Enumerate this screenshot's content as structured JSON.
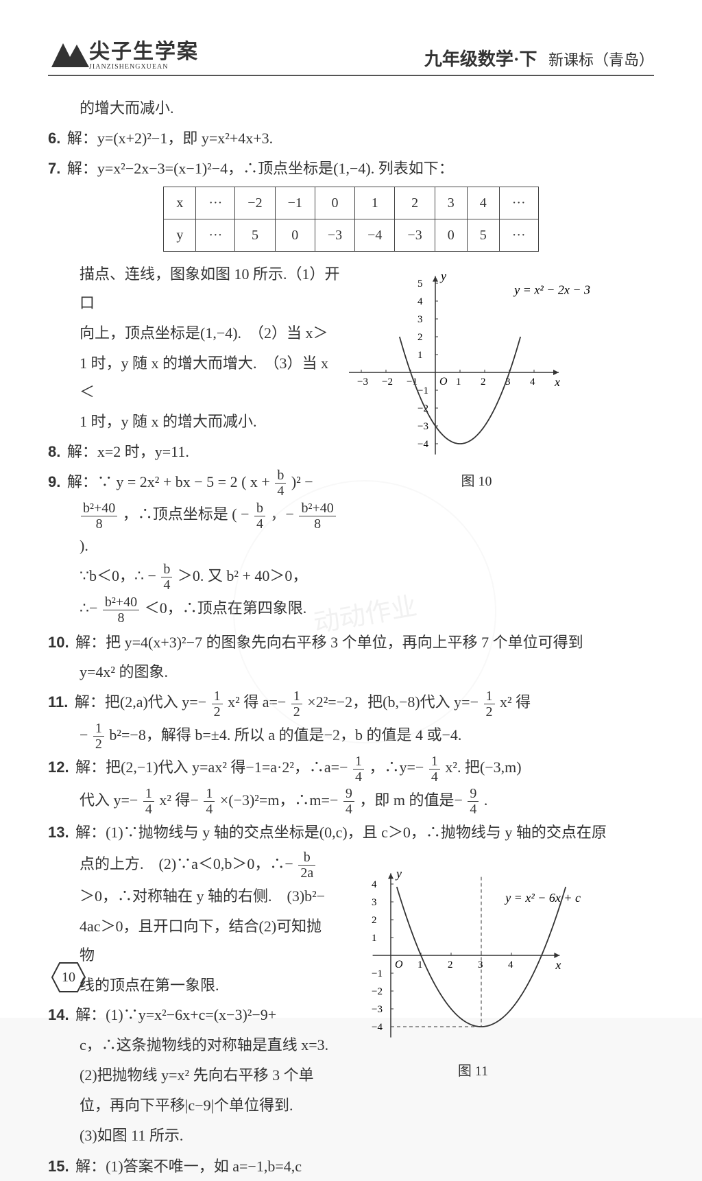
{
  "header": {
    "logo_main": "尖子生学案",
    "logo_sub": "JIANZISHENGXUEAN",
    "title": "九年级数学·下",
    "subtitle": "新课标（青岛）"
  },
  "table7": {
    "row_x": [
      "x",
      "···",
      "−2",
      "−1",
      "0",
      "1",
      "2",
      "3",
      "4",
      "···"
    ],
    "row_y": [
      "y",
      "···",
      "5",
      "0",
      "−3",
      "−4",
      "−3",
      "0",
      "5",
      "···"
    ]
  },
  "lines": {
    "l0": "的增大而减小.",
    "l6": "解：y=(x+2)²−1，即 y=x²+4x+3.",
    "l7": "解：y=x²−2x−3=(x−1)²−4，∴顶点坐标是(1,−4). 列表如下：",
    "l7b1": "描点、连线，图象如图 10 所示.（1）开口",
    "l7b2": "向上，顶点坐标是(1,−4).　（2）当 x＞",
    "l7b3": "1 时，y 随 x 的增大而增大.　（3）当 x＜",
    "l7b4": "1 时，y 随 x 的增大而减小.",
    "l8": "解：x=2 时，y=11.",
    "l9a": "解：∵ y = 2x² + bx − 5 = 2",
    "l9a2": "−",
    "l9b1": "，∴顶点坐标是",
    "l9c": "∵b＜0，∴ −",
    "l9c2": "＞0. 又 b² + 40＞0，",
    "l9d": "∴−",
    "l9d2": "＜0，∴顶点在第四象限.",
    "l10a": "解：把 y=4(x+3)²−7 的图象先向右平移 3 个单位，再向上平移 7 个单位可得到",
    "l10b": "y=4x² 的图象.",
    "l11a": "解：把(2,a)代入 y=−",
    "l11a2": "x² 得 a=−",
    "l11a3": "×2²=−2，把(b,−8)代入 y=−",
    "l11a4": "x² 得",
    "l11b": "−",
    "l11b2": "b²=−8，解得 b=±4. 所以 a 的值是−2，b 的值是 4 或−4.",
    "l12a": "解：把(2,−1)代入 y=ax² 得−1=a·2²，∴a=−",
    "l12a2": "，∴y=−",
    "l12a3": "x². 把(−3,m)",
    "l12b": "代入 y=−",
    "l12b2": "x² 得−",
    "l12b3": "×(−3)²=m，∴m=−",
    "l12b4": "，即 m 的值是−",
    "l12b5": ".",
    "l13a": "解：(1)∵抛物线与 y 轴的交点坐标是(0,c)，且 c＞0，∴抛物线与 y 轴的交点在原",
    "l13b1": "点的上方.　(2)∵a＜0,b＞0，∴−",
    "l13b2": "＞0，∴对称轴在 y 轴的右侧.　(3)b²−",
    "l13b3": "4ac＞0，且开口向下，结合(2)可知抛物",
    "l13b4": "线的顶点在第一象限.",
    "l14a": "解：(1)∵y=x²−6x+c=(x−3)²−9+",
    "l14b": "c，∴这条抛物线的对称轴是直线 x=3.",
    "l14c": "(2)把抛物线 y=x² 先向右平移 3 个单",
    "l14d": "位，再向下平移|c−9|个单位得到.",
    "l14e": "(3)如图 11 所示.",
    "l15": "解：(1)答案不唯一，如 a=−1,b=4,c"
  },
  "nums": {
    "n6": "6.",
    "n7": "7.",
    "n8": "8.",
    "n9": "9.",
    "n10": "10.",
    "n11": "11.",
    "n12": "12.",
    "n13": "13.",
    "n14": "14.",
    "n15": "15."
  },
  "fracs": {
    "b4": {
      "n": "b",
      "d": "4"
    },
    "b240_8": {
      "n": "b²+40",
      "d": "8"
    },
    "mb4": {
      "n": "b",
      "d": "4"
    },
    "mb240_8": {
      "n": "b²+40",
      "d": "8"
    },
    "half": {
      "n": "1",
      "d": "2"
    },
    "quarter": {
      "n": "1",
      "d": "4"
    },
    "nine4": {
      "n": "9",
      "d": "4"
    },
    "b2a": {
      "n": "b",
      "d": "2a"
    }
  },
  "fig10": {
    "caption": "图 10",
    "eq": "y = x² − 2x − 3",
    "yticks": [
      "5",
      "4",
      "3",
      "2",
      "1",
      "−1",
      "−2",
      "−3",
      "−4"
    ],
    "yticks_vals": [
      5,
      4,
      3,
      2,
      1,
      -1,
      -2,
      -3,
      -4
    ],
    "xticks": [
      "−3",
      "−2",
      "−1",
      "1",
      "2",
      "3",
      "4"
    ],
    "xticks_vals": [
      -3,
      -2,
      -1,
      1,
      2,
      3,
      4
    ],
    "axis_y": "y",
    "axis_x": "x",
    "origin": "O",
    "vertex": [
      1,
      -4
    ],
    "background": "#ffffff",
    "axis_color": "#333333",
    "curve_color": "#333333",
    "curve_width": 1.8
  },
  "fig11": {
    "caption": "图 11",
    "eq": "y = x² − 6x + c",
    "yticks": [
      "4",
      "3",
      "2",
      "1",
      "−1",
      "−2",
      "−3",
      "−4"
    ],
    "yticks_vals": [
      4,
      3,
      2,
      1,
      -1,
      -2,
      -3,
      -4
    ],
    "xticks": [
      "1",
      "2",
      "3",
      "4"
    ],
    "xticks_vals": [
      1,
      2,
      3,
      4
    ],
    "axis_y": "y",
    "axis_x": "x",
    "origin": "O",
    "vertex": [
      3,
      -4
    ],
    "background": "#ffffff",
    "axis_color": "#333333",
    "curve_color": "#333333",
    "dashed_color": "#333333",
    "curve_width": 1.8
  },
  "page_number": "10"
}
